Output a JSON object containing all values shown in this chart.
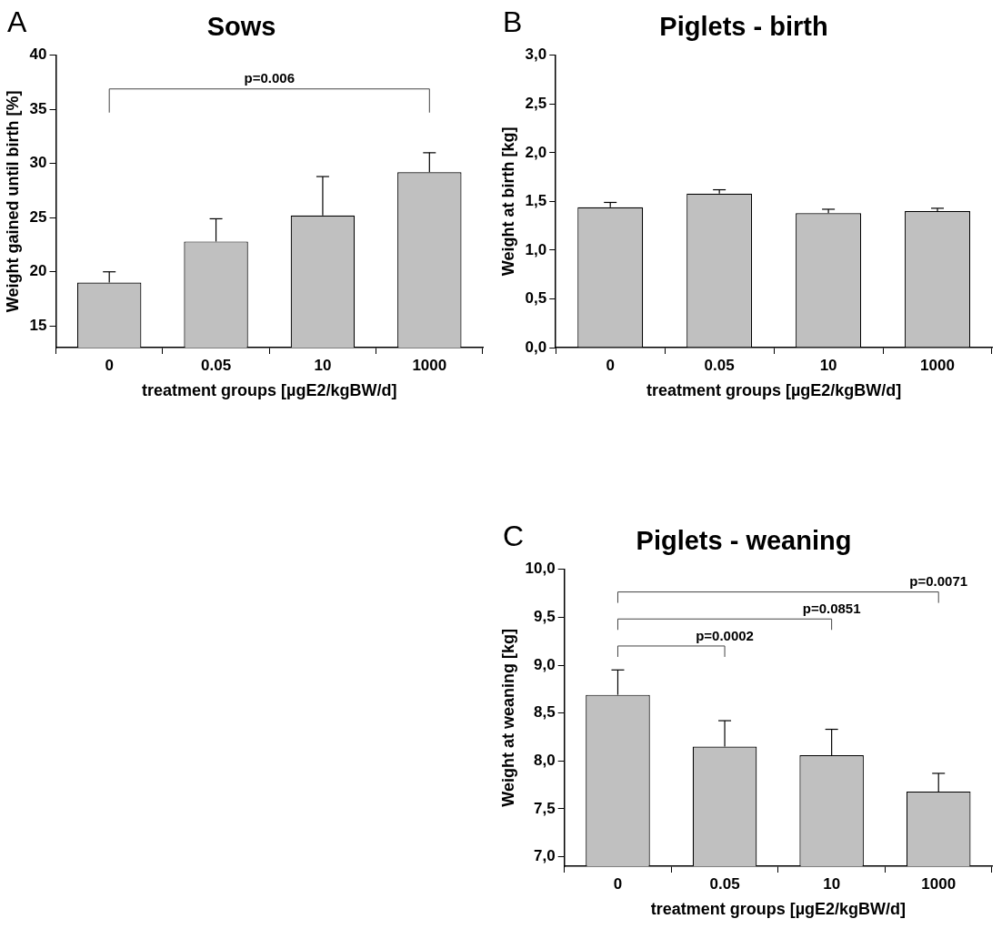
{
  "chart_data": [
    {
      "type": "bar",
      "title": "Sows",
      "xlabel": "treatment groups [µgE2/kgBW/d]",
      "ylabel": "Weight gained until birth [%]",
      "categories": [
        "0",
        "0.05",
        "10",
        "1000"
      ],
      "values": [
        19.0,
        22.8,
        25.2,
        29.2
      ],
      "errors": [
        [
          19.0,
          20.0
        ],
        [
          22.8,
          24.9
        ],
        [
          25.2,
          28.8
        ],
        [
          29.2,
          31.0
        ]
      ],
      "color": "#c0c0c0",
      "ylim": [
        13,
        40
      ],
      "yticks": [
        15,
        20,
        25,
        30,
        35,
        40
      ],
      "grid": false,
      "annotations": [
        "A",
        "p=0.006"
      ]
    },
    {
      "type": "bar",
      "title": "Piglets - birth",
      "xlabel": "treatment groups [µgE2/kgBW/d]",
      "ylabel": "Weight at birth [kg]",
      "categories": [
        "0",
        "0.05",
        "10",
        "1000"
      ],
      "values": [
        1.44,
        1.58,
        1.38,
        1.4
      ],
      "errors": [
        [
          1.44,
          1.49
        ],
        [
          1.58,
          1.62
        ],
        [
          1.38,
          1.42
        ],
        [
          1.4,
          1.43
        ]
      ],
      "color": "#c0c0c0",
      "ylim": [
        0,
        3
      ],
      "yticks": [
        {
          "value": 0,
          "label": "0,0"
        },
        {
          "value": 0.5,
          "label": "0,5"
        },
        {
          "value": 1,
          "label": "1,0"
        },
        {
          "value": 1.5,
          "label": "1,5"
        },
        {
          "value": 2,
          "label": "2,0"
        },
        {
          "value": 2.5,
          "label": "2,5"
        },
        {
          "value": 3,
          "label": "3,0"
        }
      ],
      "grid": false,
      "annotations": [
        "B"
      ]
    },
    {
      "type": "bar",
      "title": "Piglets - weaning",
      "xlabel": "treatment groups [µgE2/kgBW/d]",
      "ylabel": "Weight at weaning [kg]",
      "categories": [
        "0",
        "0.05",
        "10",
        "1000"
      ],
      "values": [
        8.69,
        8.15,
        8.06,
        7.68
      ],
      "errors": [
        [
          8.69,
          8.95
        ],
        [
          8.15,
          8.42
        ],
        [
          8.06,
          8.33
        ],
        [
          7.68,
          7.87
        ]
      ],
      "color": "#c0c0c0",
      "ylim": [
        6.9,
        10
      ],
      "yticks": [
        {
          "value": 7,
          "label": "7,0"
        },
        {
          "value": 7.5,
          "label": "7,5"
        },
        {
          "value": 8,
          "label": "8,0"
        },
        {
          "value": 8.5,
          "label": "8,5"
        },
        {
          "value": 9,
          "label": "9,0"
        },
        {
          "value": 9.5,
          "label": "9,5"
        },
        {
          "value": 10,
          "label": "10,0"
        }
      ],
      "grid": false,
      "annotations": [
        "C",
        "p=0.0002",
        "p=0.0851",
        "p=0.0071"
      ]
    }
  ]
}
